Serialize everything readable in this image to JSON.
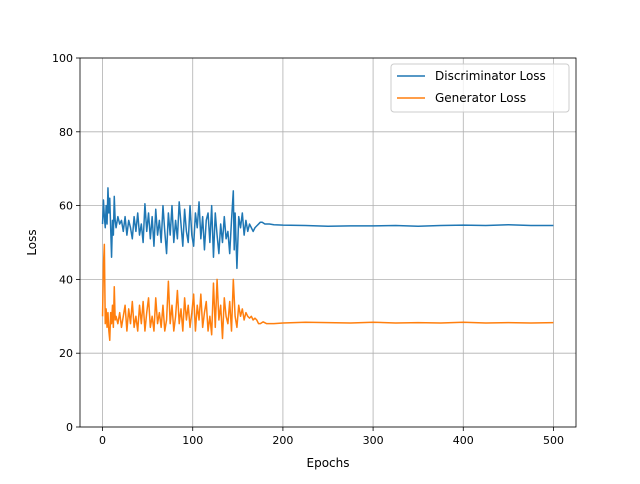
{
  "chart_data": {
    "type": "line",
    "title": "",
    "xlabel": "Epochs",
    "ylabel": "Loss",
    "xlim": [
      -25,
      525
    ],
    "ylim": [
      0,
      100
    ],
    "x_ticks": [
      0,
      100,
      200,
      300,
      400,
      500
    ],
    "y_ticks": [
      0,
      20,
      40,
      60,
      80,
      100
    ],
    "grid": true,
    "legend_position": "top-right",
    "series": [
      {
        "name": "Discriminator Loss",
        "color": "#1f77b4",
        "points": [
          [
            0,
            55
          ],
          [
            1,
            61.5
          ],
          [
            2,
            57
          ],
          [
            3,
            54
          ],
          [
            4,
            60
          ],
          [
            5,
            55
          ],
          [
            6,
            64.8
          ],
          [
            7,
            58
          ],
          [
            8,
            62
          ],
          [
            9,
            54
          ],
          [
            10,
            46
          ],
          [
            11,
            56
          ],
          [
            12,
            52
          ],
          [
            13,
            62.5
          ],
          [
            14,
            56
          ],
          [
            15,
            54
          ],
          [
            17,
            57
          ],
          [
            19,
            55
          ],
          [
            21,
            56
          ],
          [
            23,
            53
          ],
          [
            25,
            57
          ],
          [
            27,
            52
          ],
          [
            29,
            56
          ],
          [
            31,
            54
          ],
          [
            33,
            51
          ],
          [
            35,
            57
          ],
          [
            37,
            53
          ],
          [
            39,
            58
          ],
          [
            41,
            52
          ],
          [
            43,
            55
          ],
          [
            45,
            50
          ],
          [
            47,
            60.5
          ],
          [
            49,
            53
          ],
          [
            51,
            58
          ],
          [
            53,
            51
          ],
          [
            55,
            57
          ],
          [
            57,
            49
          ],
          [
            59,
            59
          ],
          [
            61,
            52
          ],
          [
            63,
            56
          ],
          [
            65,
            50
          ],
          [
            67,
            60
          ],
          [
            69,
            53
          ],
          [
            71,
            47
          ],
          [
            73,
            58
          ],
          [
            75,
            52
          ],
          [
            77,
            60
          ],
          [
            79,
            50
          ],
          [
            81,
            56
          ],
          [
            83,
            51
          ],
          [
            85,
            61
          ],
          [
            87,
            55
          ],
          [
            89,
            49
          ],
          [
            91,
            59
          ],
          [
            93,
            53
          ],
          [
            95,
            50
          ],
          [
            97,
            60
          ],
          [
            99,
            52
          ],
          [
            101,
            49
          ],
          [
            103,
            58
          ],
          [
            105,
            54
          ],
          [
            107,
            61
          ],
          [
            109,
            51
          ],
          [
            111,
            57
          ],
          [
            113,
            48
          ],
          [
            115,
            56
          ],
          [
            117,
            58
          ],
          [
            119,
            50
          ],
          [
            121,
            60
          ],
          [
            123,
            46
          ],
          [
            125,
            58
          ],
          [
            127,
            52
          ],
          [
            129,
            47
          ],
          [
            131,
            55
          ],
          [
            133,
            50
          ],
          [
            135,
            57
          ],
          [
            137,
            51
          ],
          [
            139,
            53
          ],
          [
            141,
            47
          ],
          [
            143,
            56
          ],
          [
            145,
            64
          ],
          [
            146,
            48
          ],
          [
            147,
            58
          ],
          [
            149,
            43
          ],
          [
            151,
            57
          ],
          [
            153,
            54
          ],
          [
            155,
            58
          ],
          [
            157,
            52
          ],
          [
            159,
            56
          ],
          [
            161,
            53
          ],
          [
            163,
            55
          ],
          [
            165,
            54
          ],
          [
            167,
            53
          ],
          [
            169,
            54
          ],
          [
            171,
            54.5
          ],
          [
            173,
            55
          ],
          [
            175,
            55.5
          ],
          [
            177,
            55.5
          ],
          [
            180,
            55
          ],
          [
            185,
            55
          ],
          [
            190,
            54.8
          ],
          [
            200,
            54.7
          ],
          [
            225,
            54.6
          ],
          [
            250,
            54.4
          ],
          [
            275,
            54.5
          ],
          [
            300,
            54.5
          ],
          [
            325,
            54.6
          ],
          [
            350,
            54.4
          ],
          [
            375,
            54.6
          ],
          [
            400,
            54.7
          ],
          [
            425,
            54.6
          ],
          [
            450,
            54.8
          ],
          [
            475,
            54.6
          ],
          [
            500,
            54.6
          ]
        ]
      },
      {
        "name": "Generator Loss",
        "color": "#ff7f0e",
        "points": [
          [
            0,
            30
          ],
          [
            1,
            44
          ],
          [
            2,
            49.5
          ],
          [
            3,
            28
          ],
          [
            4,
            32
          ],
          [
            5,
            27
          ],
          [
            6,
            31
          ],
          [
            7,
            26
          ],
          [
            8,
            23.5
          ],
          [
            9,
            31
          ],
          [
            10,
            28
          ],
          [
            11,
            33
          ],
          [
            12,
            27
          ],
          [
            13,
            38
          ],
          [
            14,
            29
          ],
          [
            15,
            30
          ],
          [
            17,
            28
          ],
          [
            19,
            31
          ],
          [
            21,
            27
          ],
          [
            23,
            30
          ],
          [
            25,
            33
          ],
          [
            27,
            26
          ],
          [
            29,
            32
          ],
          [
            31,
            28
          ],
          [
            33,
            34
          ],
          [
            35,
            27
          ],
          [
            37,
            30
          ],
          [
            39,
            26
          ],
          [
            41,
            33
          ],
          [
            43,
            28
          ],
          [
            45,
            34
          ],
          [
            47,
            26
          ],
          [
            49,
            31
          ],
          [
            51,
            35
          ],
          [
            53,
            27
          ],
          [
            55,
            30
          ],
          [
            57,
            26
          ],
          [
            59,
            35
          ],
          [
            61,
            28
          ],
          [
            63,
            31
          ],
          [
            65,
            27
          ],
          [
            67,
            33
          ],
          [
            69,
            26
          ],
          [
            71,
            29
          ],
          [
            73,
            39.5
          ],
          [
            75,
            28
          ],
          [
            77,
            33
          ],
          [
            79,
            26
          ],
          [
            81,
            30
          ],
          [
            83,
            37
          ],
          [
            85,
            28
          ],
          [
            87,
            32
          ],
          [
            89,
            26
          ],
          [
            91,
            35
          ],
          [
            93,
            29
          ],
          [
            95,
            33
          ],
          [
            97,
            27
          ],
          [
            99,
            31
          ],
          [
            101,
            36
          ],
          [
            103,
            26
          ],
          [
            105,
            33
          ],
          [
            107,
            29
          ],
          [
            109,
            36
          ],
          [
            111,
            27
          ],
          [
            113,
            31
          ],
          [
            115,
            34
          ],
          [
            117,
            26
          ],
          [
            119,
            30
          ],
          [
            121,
            25
          ],
          [
            123,
            39
          ],
          [
            125,
            27
          ],
          [
            127,
            40
          ],
          [
            129,
            29
          ],
          [
            131,
            33
          ],
          [
            133,
            24
          ],
          [
            135,
            35
          ],
          [
            137,
            30
          ],
          [
            139,
            28
          ],
          [
            141,
            34
          ],
          [
            143,
            26
          ],
          [
            145,
            40
          ],
          [
            147,
            30
          ],
          [
            149,
            27
          ],
          [
            151,
            33
          ],
          [
            153,
            30
          ],
          [
            155,
            32
          ],
          [
            157,
            29
          ],
          [
            159,
            31
          ],
          [
            161,
            30
          ],
          [
            163,
            29.5
          ],
          [
            165,
            30
          ],
          [
            167,
            29
          ],
          [
            169,
            29.5
          ],
          [
            171,
            29
          ],
          [
            173,
            28
          ],
          [
            175,
            28
          ],
          [
            178,
            28.5
          ],
          [
            182,
            28
          ],
          [
            190,
            28
          ],
          [
            200,
            28.2
          ],
          [
            225,
            28.4
          ],
          [
            250,
            28.3
          ],
          [
            275,
            28.2
          ],
          [
            300,
            28.4
          ],
          [
            325,
            28.2
          ],
          [
            350,
            28.3
          ],
          [
            375,
            28.2
          ],
          [
            400,
            28.4
          ],
          [
            425,
            28.2
          ],
          [
            450,
            28.3
          ],
          [
            475,
            28.2
          ],
          [
            500,
            28.3
          ]
        ]
      }
    ]
  }
}
